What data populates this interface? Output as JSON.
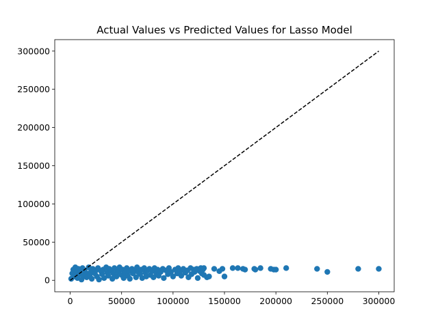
{
  "chart_data": {
    "type": "scatter",
    "title": "Actual Values vs Predicted Values for Lasso Model",
    "xlabel": "",
    "ylabel": "",
    "xlim": [
      -15000,
      315000
    ],
    "ylim": [
      -15000,
      315000
    ],
    "x_ticks": [
      0,
      50000,
      100000,
      150000,
      200000,
      250000,
      300000
    ],
    "x_tick_labels": [
      "0",
      "50000",
      "100000",
      "150000",
      "200000",
      "250000",
      "300000"
    ],
    "y_ticks": [
      0,
      50000,
      100000,
      150000,
      200000,
      250000,
      300000
    ],
    "y_tick_labels": [
      "0",
      "50000",
      "100000",
      "150000",
      "200000",
      "250000",
      "300000"
    ],
    "grid": false,
    "point_color": "#1f77b4",
    "reference_line": {
      "style": "dashed",
      "color": "#000000",
      "from": [
        0,
        0
      ],
      "to": [
        300000,
        300000
      ]
    },
    "series": [
      {
        "points": [
          [
            1000,
            2000
          ],
          [
            2000,
            9000
          ],
          [
            3000,
            14000
          ],
          [
            4000,
            5000
          ],
          [
            5000,
            17000
          ],
          [
            6000,
            11000
          ],
          [
            7000,
            3000
          ],
          [
            8000,
            15000
          ],
          [
            9000,
            8000
          ],
          [
            10000,
            12000
          ],
          [
            11000,
            1000
          ],
          [
            12000,
            16000
          ],
          [
            13000,
            6000
          ],
          [
            14000,
            13000
          ],
          [
            15000,
            10000
          ],
          [
            16000,
            4000
          ],
          [
            18000,
            17000
          ],
          [
            19000,
            7000
          ],
          [
            20000,
            11000
          ],
          [
            21000,
            2000
          ],
          [
            22000,
            15000
          ],
          [
            24000,
            9000
          ],
          [
            25000,
            13000
          ],
          [
            26000,
            5000
          ],
          [
            27000,
            16000
          ],
          [
            28000,
            1000
          ],
          [
            30000,
            12000
          ],
          [
            31000,
            8000
          ],
          [
            32000,
            14000
          ],
          [
            33000,
            3000
          ],
          [
            35000,
            17000
          ],
          [
            36000,
            10000
          ],
          [
            37000,
            6000
          ],
          [
            38000,
            15000
          ],
          [
            40000,
            12000
          ],
          [
            41000,
            2000
          ],
          [
            42000,
            9000
          ],
          [
            43000,
            16000
          ],
          [
            45000,
            5000
          ],
          [
            46000,
            13000
          ],
          [
            47000,
            11000
          ],
          [
            48000,
            17000
          ],
          [
            50000,
            7000
          ],
          [
            51000,
            14000
          ],
          [
            52000,
            3000
          ],
          [
            53000,
            10000
          ],
          [
            55000,
            16000
          ],
          [
            56000,
            6000
          ],
          [
            57000,
            12000
          ],
          [
            58000,
            2000
          ],
          [
            60000,
            15000
          ],
          [
            61000,
            9000
          ],
          [
            62000,
            13000
          ],
          [
            64000,
            4000
          ],
          [
            65000,
            17000
          ],
          [
            66000,
            11000
          ],
          [
            68000,
            8000
          ],
          [
            69000,
            14000
          ],
          [
            70000,
            3000
          ],
          [
            72000,
            16000
          ],
          [
            73000,
            10000
          ],
          [
            74000,
            5000
          ],
          [
            75000,
            13000
          ],
          [
            77000,
            15000
          ],
          [
            78000,
            7000
          ],
          [
            80000,
            12000
          ],
          [
            81000,
            4000
          ],
          [
            82000,
            16000
          ],
          [
            84000,
            9000
          ],
          [
            85000,
            14000
          ],
          [
            86000,
            6000
          ],
          [
            88000,
            11000
          ],
          [
            90000,
            15000
          ],
          [
            91000,
            3000
          ],
          [
            93000,
            13000
          ],
          [
            95000,
            8000
          ],
          [
            96000,
            16000
          ],
          [
            98000,
            11000
          ],
          [
            100000,
            5000
          ],
          [
            102000,
            14000
          ],
          [
            104000,
            9000
          ],
          [
            105000,
            16000
          ],
          [
            107000,
            12000
          ],
          [
            108000,
            6000
          ],
          [
            110000,
            15000
          ],
          [
            112000,
            10000
          ],
          [
            114000,
            13000
          ],
          [
            115000,
            4000
          ],
          [
            117000,
            16000
          ],
          [
            118000,
            8000
          ],
          [
            120000,
            14000
          ],
          [
            121000,
            11000
          ],
          [
            123000,
            15000
          ],
          [
            124000,
            3000
          ],
          [
            126000,
            12000
          ],
          [
            127000,
            16000
          ],
          [
            128000,
            9000
          ],
          [
            129000,
            14000
          ],
          [
            130000,
            7000
          ],
          [
            130000,
            16000
          ],
          [
            133000,
            4000
          ],
          [
            135000,
            5000
          ],
          [
            140000,
            15000
          ],
          [
            145000,
            12000
          ],
          [
            148000,
            15000
          ],
          [
            150000,
            5000
          ],
          [
            158000,
            16000
          ],
          [
            163000,
            16000
          ],
          [
            168000,
            15000
          ],
          [
            170000,
            14000
          ],
          [
            179000,
            15000
          ],
          [
            180000,
            14000
          ],
          [
            185000,
            16000
          ],
          [
            195000,
            15000
          ],
          [
            198000,
            14000
          ],
          [
            200000,
            14000
          ],
          [
            210000,
            16000
          ],
          [
            240000,
            15000
          ],
          [
            250000,
            11000
          ],
          [
            280000,
            15000
          ],
          [
            300000,
            15000
          ]
        ]
      }
    ]
  }
}
